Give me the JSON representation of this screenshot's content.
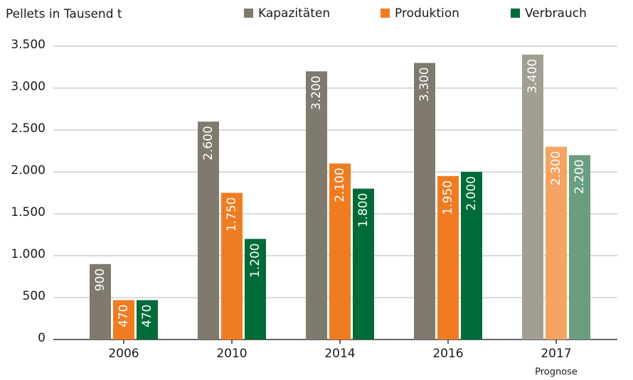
{
  "chart_data": {
    "type": "bar",
    "title": "Pellets in Tausend t",
    "categories": [
      "2006",
      "2010",
      "2014",
      "2016",
      "2017"
    ],
    "series": [
      {
        "name": "Kapazitäten",
        "color": "#7f7a6d",
        "forecast_color": "#a29e92",
        "values": [
          900,
          2600,
          3200,
          3300,
          3400
        ],
        "value_labels": [
          "900",
          "2.600",
          "3.200",
          "3.300",
          "3.400"
        ]
      },
      {
        "name": "Produktion",
        "color": "#f07c21",
        "forecast_color": "#f5a362",
        "values": [
          470,
          1750,
          2100,
          1950,
          2300
        ],
        "value_labels": [
          "470",
          "1.750",
          "2.100",
          "1.950",
          "2.300"
        ]
      },
      {
        "name": "Verbrauch",
        "color": "#006b38",
        "forecast_color": "#6b9e7e",
        "values": [
          470,
          1200,
          1800,
          2000,
          2200
        ],
        "value_labels": [
          "470",
          "1.200",
          "1.800",
          "2.000",
          "2.200"
        ]
      }
    ],
    "annotations": [
      {
        "text": "Prognose",
        "category": "2017"
      }
    ],
    "ylim": [
      0,
      3500
    ],
    "yticks": [
      0,
      500,
      {
        "value": 1000,
        "label": "1.000"
      },
      {
        "value": 1500,
        "label": "1.500"
      },
      {
        "value": 2000,
        "label": "2.000"
      },
      {
        "value": 2500,
        "label": "2.500"
      },
      {
        "value": 3000,
        "label": "3.000"
      },
      {
        "value": 3500,
        "label": "3.500"
      }
    ],
    "grid": true,
    "legend": "top"
  }
}
